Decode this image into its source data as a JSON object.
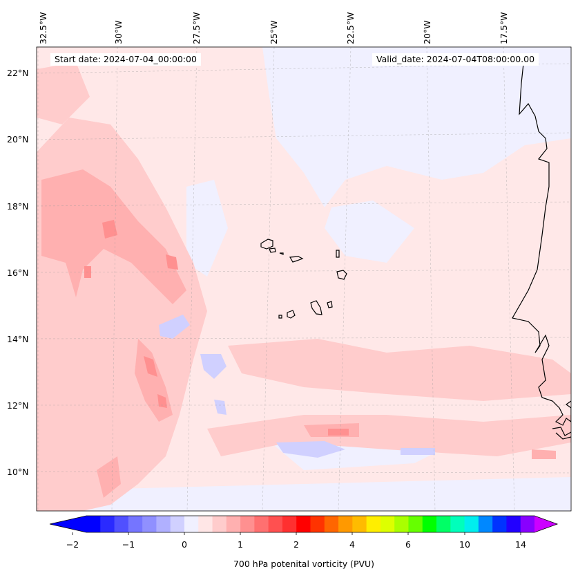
{
  "header": {
    "start_date": "Start date: 2024-07-04_00:00:00",
    "valid_date": "Valid_date: 2024-07-04T08:00:00.00"
  },
  "axes": {
    "lon_labels": [
      "32.5°W",
      "30°W",
      "27.5°W",
      "25°W",
      "22.5°W",
      "20°W",
      "17.5°W"
    ],
    "lat_labels": [
      "22°N",
      "20°N",
      "18°N",
      "16°N",
      "14°N",
      "12°N",
      "10°N"
    ]
  },
  "colorbar": {
    "label": "700 hPa potenital vorticity (PVU)",
    "tick_labels": [
      "−2",
      "−1",
      "0",
      "1",
      "2",
      "4",
      "6",
      "10",
      "14"
    ],
    "colors": [
      "#0000ff",
      "#2a2aff",
      "#5050ff",
      "#7575ff",
      "#9090ff",
      "#b0b0ff",
      "#d0d0ff",
      "#f0f0ff",
      "#ffe6e6",
      "#ffcccc",
      "#ffb0b0",
      "#ff9090",
      "#ff7070",
      "#ff5050",
      "#ff3030",
      "#ff0000",
      "#ff3300",
      "#ff6600",
      "#ff9900",
      "#ffbb00",
      "#ffee00",
      "#ddff00",
      "#aaff00",
      "#66ff00",
      "#00ff00",
      "#00ff66",
      "#00ffbb",
      "#00eeee",
      "#0088ff",
      "#0033ff",
      "#2200ff",
      "#8800ff"
    ],
    "under_color": "#0000ff",
    "over_color": "#cc00ff"
  },
  "map": {
    "background_color": "#ffe8e8",
    "coastline_color": "#000000",
    "region": "Cape Verde / West Africa coast"
  }
}
